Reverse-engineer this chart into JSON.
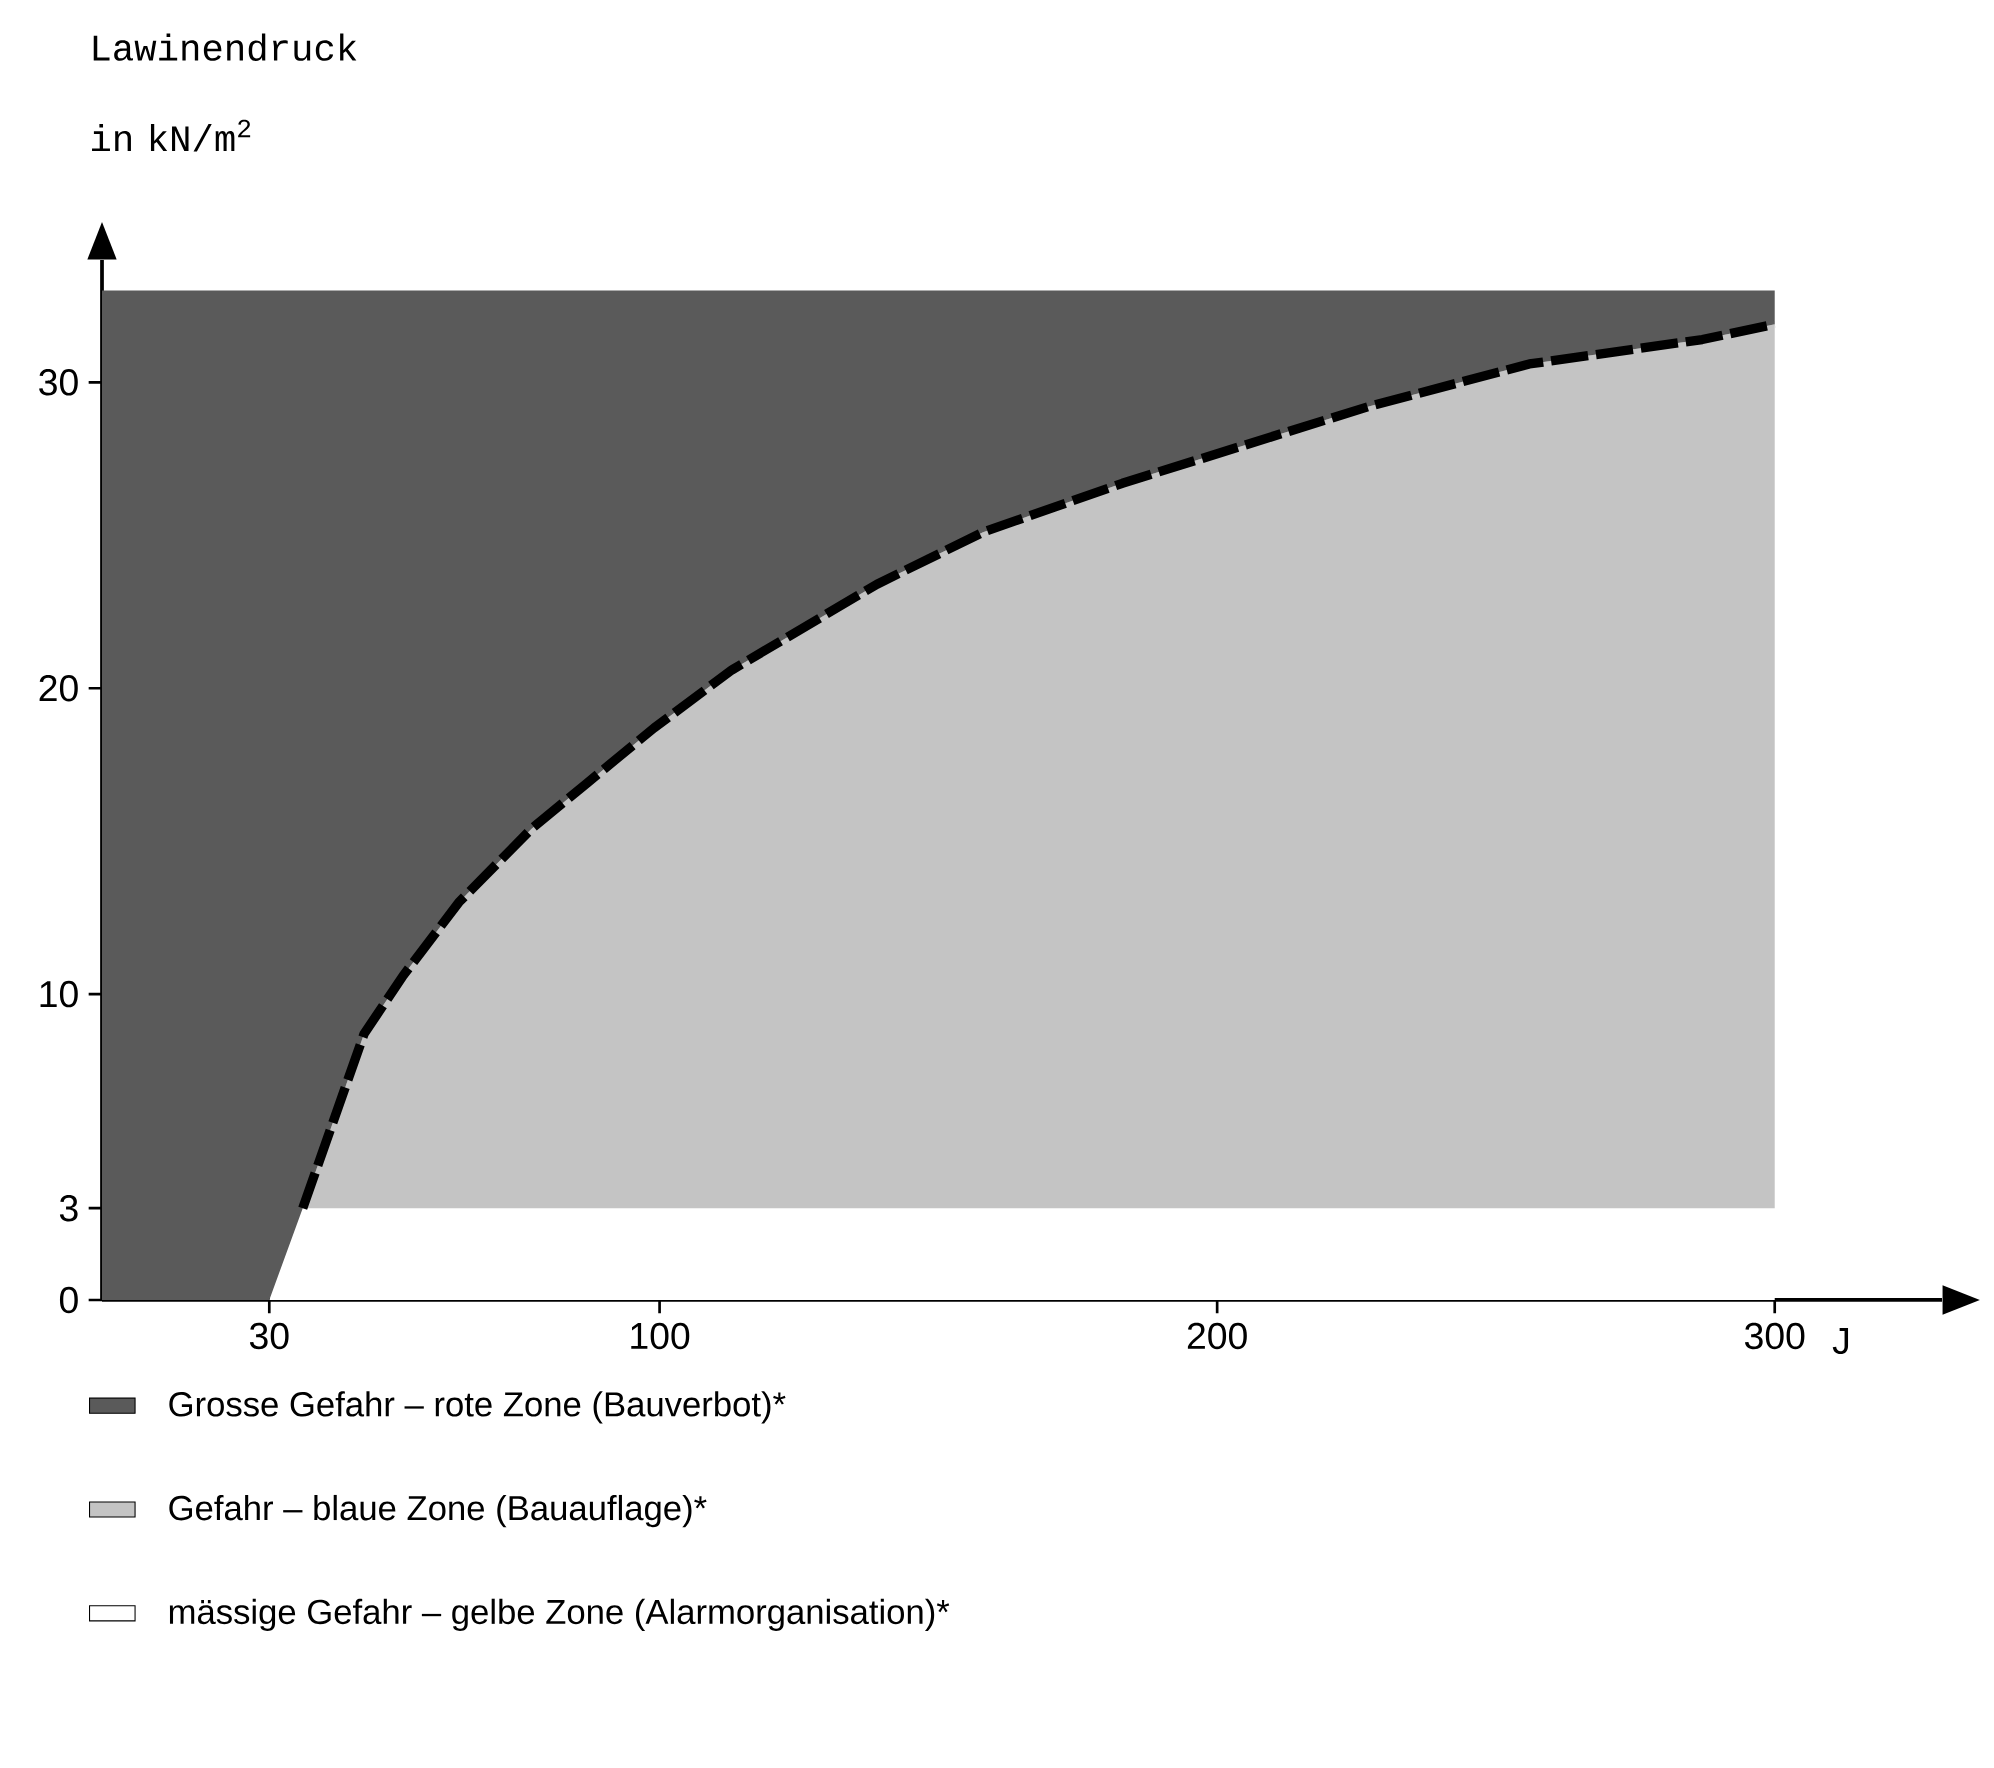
{
  "chart_data": {
    "type": "area",
    "stacked": true,
    "ylabel": "Lawinendruck in kN/m$^{2}$",
    "xlabel": "J",
    "x": [
      0,
      30,
      36,
      47,
      54,
      64,
      77,
      87,
      99,
      113,
      139,
      158,
      183,
      227,
      256,
      287,
      300
    ],
    "xlim": [
      0,
      330
    ],
    "ylim": [
      0,
      34
    ],
    "xticks": [
      30,
      100,
      200,
      300
    ],
    "yticks": [
      0,
      3,
      10,
      20,
      30
    ],
    "legend": "bottom",
    "series": [
      {
        "name": "mässige Gefahr – gelbe Zone (Alarmorganisation)*",
        "color": "#ffffff",
        "values": [
          0,
          0,
          3,
          3,
          3,
          3,
          3,
          3,
          3,
          3,
          3,
          3,
          3,
          3,
          3,
          3,
          3
        ]
      },
      {
        "name": "Gefahr – blaue Zone (Bauauflage)*",
        "color": "#c4c4c4",
        "line_style": "dashed",
        "values": [
          0,
          0,
          0,
          5.7,
          7.6,
          10,
          12.4,
          13.9,
          15.7,
          17.6,
          20.4,
          22.1,
          23.7,
          26.2,
          27.6,
          28.4,
          28.9
        ]
      },
      {
        "name": "Grosse Gefahr – rote Zone (Bauverbot)*",
        "color": "#5a5a5a",
        "values": [
          33,
          33,
          30,
          24.3,
          22.4,
          20,
          17.6,
          16.1,
          14.3,
          12.4,
          9.6,
          7.9,
          6.3,
          3.8,
          2.4,
          1.6,
          1.1
        ]
      }
    ]
  }
}
